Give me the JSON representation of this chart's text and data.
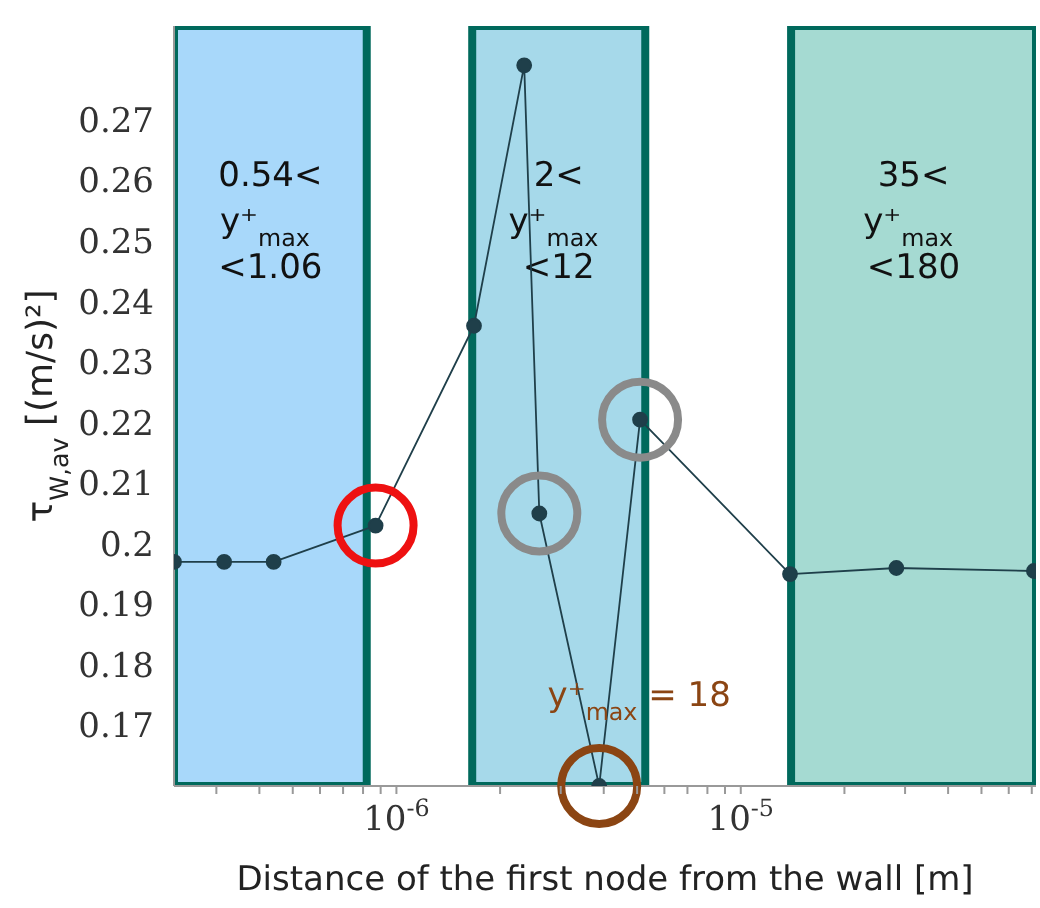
{
  "chart_data": {
    "type": "line",
    "xlabel": "Distance of the first node from the wall [m]",
    "ylabel": "τ$_{W,av}$ [(m/s)²]",
    "log": "x",
    "marker": "circle",
    "line_style": "solid",
    "xlim": [
      2.26e-07,
      7.2e-05
    ],
    "xticks": [
      {
        "value": 3e-07,
        "label": null
      },
      {
        "value": 4e-07,
        "label": null
      },
      {
        "value": 5e-07,
        "label": null
      },
      {
        "value": 6e-07,
        "label": null
      },
      {
        "value": 7e-07,
        "label": null
      },
      {
        "value": 8e-07,
        "label": null
      },
      {
        "value": 9e-07,
        "label": null
      },
      {
        "value": 1e-06,
        "label": "10$^{-6}$"
      },
      {
        "value": 2e-06,
        "label": null
      },
      {
        "value": 3e-06,
        "label": null
      },
      {
        "value": 4e-06,
        "label": null
      },
      {
        "value": 5e-06,
        "label": null
      },
      {
        "value": 6e-06,
        "label": null
      },
      {
        "value": 7e-06,
        "label": null
      },
      {
        "value": 8e-06,
        "label": null
      },
      {
        "value": 9e-06,
        "label": null
      },
      {
        "value": 1e-05,
        "label": "10$^{-5}$"
      },
      {
        "value": 2e-05,
        "label": null
      },
      {
        "value": 3e-05,
        "label": null
      },
      {
        "value": 4e-05,
        "label": null
      },
      {
        "value": 5e-05,
        "label": null
      },
      {
        "value": 6e-05,
        "label": null
      },
      {
        "value": 7e-05,
        "label": null
      }
    ],
    "ylim": [
      0.16,
      0.2855
    ],
    "yticks": [
      0.17,
      0.18,
      0.19,
      0.2,
      0.21,
      0.22,
      0.23,
      0.24,
      0.25,
      0.26,
      0.27
    ],
    "x": [
      2.26e-07,
      3.16e-07,
      4.4e-07,
      8.7e-07,
      1.68e-06,
      2.35e-06,
      2.6e-06,
      3.88e-06,
      5.1e-06,
      1.39e-05,
      2.83e-05,
      7.1e-05
    ],
    "series": [
      {
        "color": "#1f3f4a",
        "values": [
          0.197,
          0.197,
          0.197,
          0.203,
          0.236,
          0.279,
          0.205,
          0.16,
          0.2205,
          0.195,
          0.196,
          0.1955
        ]
      }
    ],
    "bands": [
      {
        "axis": "x",
        "from": 2.26e-07,
        "to": 8.2e-07,
        "label": "0.54< y⁺$_{max}$ <1.06",
        "color": "#a8d8fa"
      },
      {
        "axis": "x",
        "from": 1.66e-06,
        "to": 5.28e-06,
        "label": "2< y⁺$_{max}$ <12",
        "color": "#a6d9ea"
      },
      {
        "axis": "x",
        "from": 1.4e-05,
        "to": 7.2e-05,
        "label": "35< y⁺$_{max}$ <180",
        "color": "#a5dad2"
      }
    ],
    "annotations": [
      {
        "text": "y⁺$_{max}$ = 18",
        "x": 3.88e-06,
        "y": 0.16
      }
    ]
  }
}
